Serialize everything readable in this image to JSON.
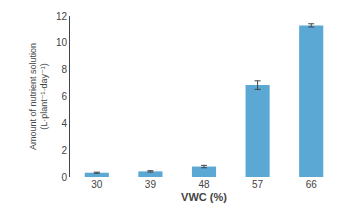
{
  "chart_data": {
    "type": "bar",
    "categories": [
      "30",
      "39",
      "48",
      "57",
      "66"
    ],
    "values": [
      0.32,
      0.42,
      0.78,
      6.85,
      11.3
    ],
    "errors": [
      0.04,
      0.05,
      0.09,
      0.32,
      0.12
    ],
    "color": "#5BA8D4",
    "xlabel": "VWC (%)",
    "ylabel": "Amount of nutrient solution\n(L·plant⁻¹·day⁻¹)",
    "ylim": [
      0,
      12
    ],
    "yticks": [
      0,
      2,
      4,
      6,
      8,
      10,
      12
    ],
    "grid": false
  }
}
